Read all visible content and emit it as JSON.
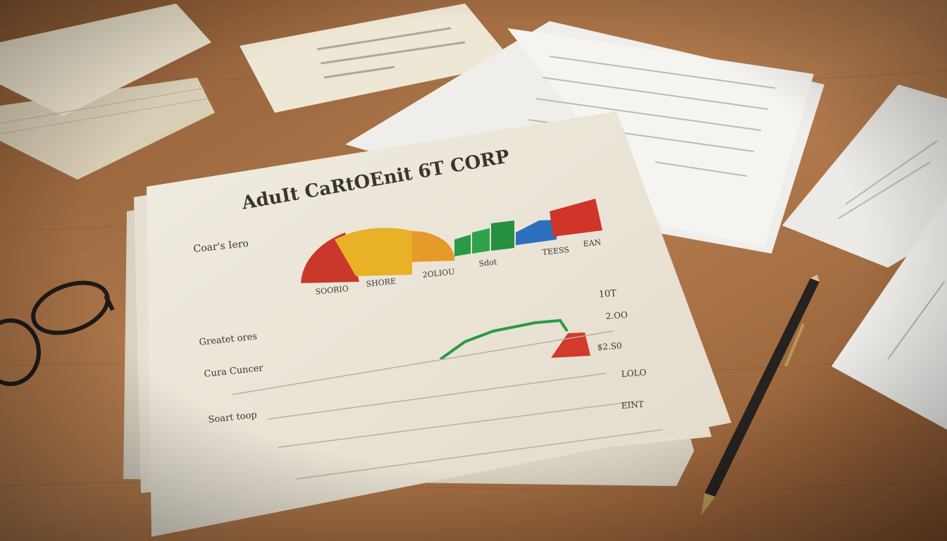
{
  "document": {
    "title": "AduIt CaRtOEnit 6T CORP",
    "labels": [
      "Coar's Iero",
      "Greatet ores",
      "Cura Cuncer",
      "Soart toop",
      "SOORIO",
      "SHORE",
      "2OLIOU",
      "Sdot",
      "TEESS",
      "EAN",
      "10T",
      "2.OO",
      "$2.S0",
      "LOLO",
      "EINT"
    ]
  }
}
